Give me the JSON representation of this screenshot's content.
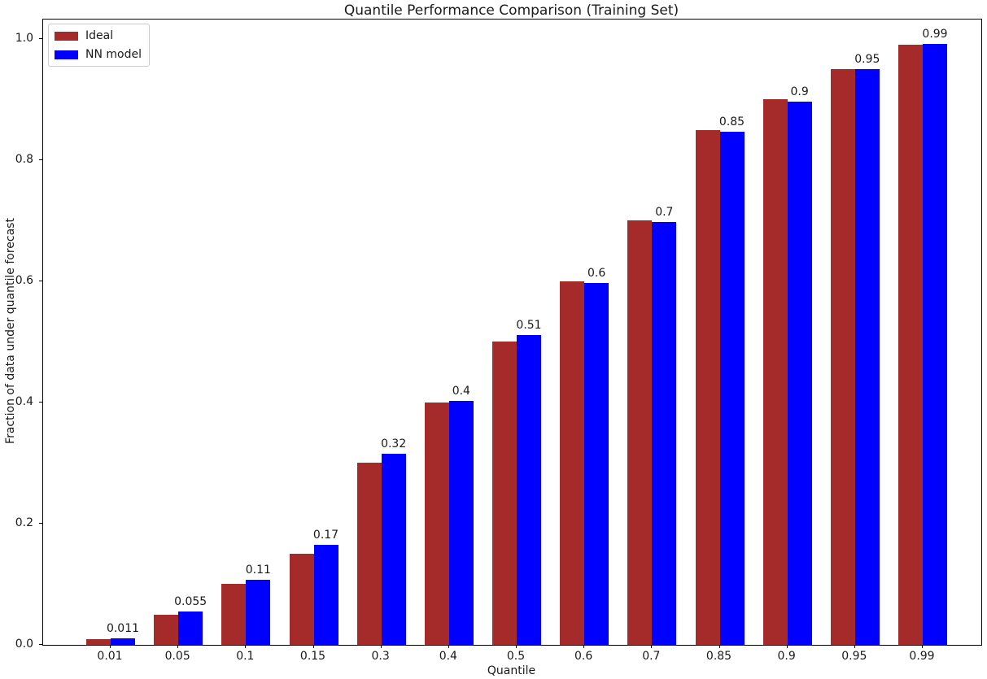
{
  "chart_data": {
    "type": "bar",
    "title": "Quantile Performance Comparison (Training Set)",
    "xlabel": "Quantile",
    "ylabel": "Fraction of data under quantile forecast",
    "categories": [
      "0.01",
      "0.05",
      "0.1",
      "0.15",
      "0.3",
      "0.4",
      "0.5",
      "0.6",
      "0.7",
      "0.85",
      "0.9",
      "0.95",
      "0.99"
    ],
    "series": [
      {
        "name": "Ideal",
        "color": "#A52A2A",
        "values": [
          0.01,
          0.05,
          0.1,
          0.15,
          0.3,
          0.4,
          0.5,
          0.6,
          0.7,
          0.85,
          0.9,
          0.95,
          0.99
        ]
      },
      {
        "name": "NN model",
        "color": "#0000FF",
        "values": [
          0.011,
          0.055,
          0.107,
          0.165,
          0.315,
          0.403,
          0.512,
          0.597,
          0.698,
          0.847,
          0.897,
          0.951,
          0.992
        ]
      }
    ],
    "bar_labels": [
      "0.011",
      "0.055",
      "0.11",
      "0.17",
      "0.32",
      "0.4",
      "0.51",
      "0.6",
      "0.7",
      "0.85",
      "0.9",
      "0.95",
      "0.99"
    ],
    "yticks": [
      "0.0",
      "0.2",
      "0.4",
      "0.6",
      "0.8",
      "1.0"
    ],
    "ylim": [
      0,
      1.03
    ],
    "grid": false,
    "legend_position": "upper left"
  }
}
